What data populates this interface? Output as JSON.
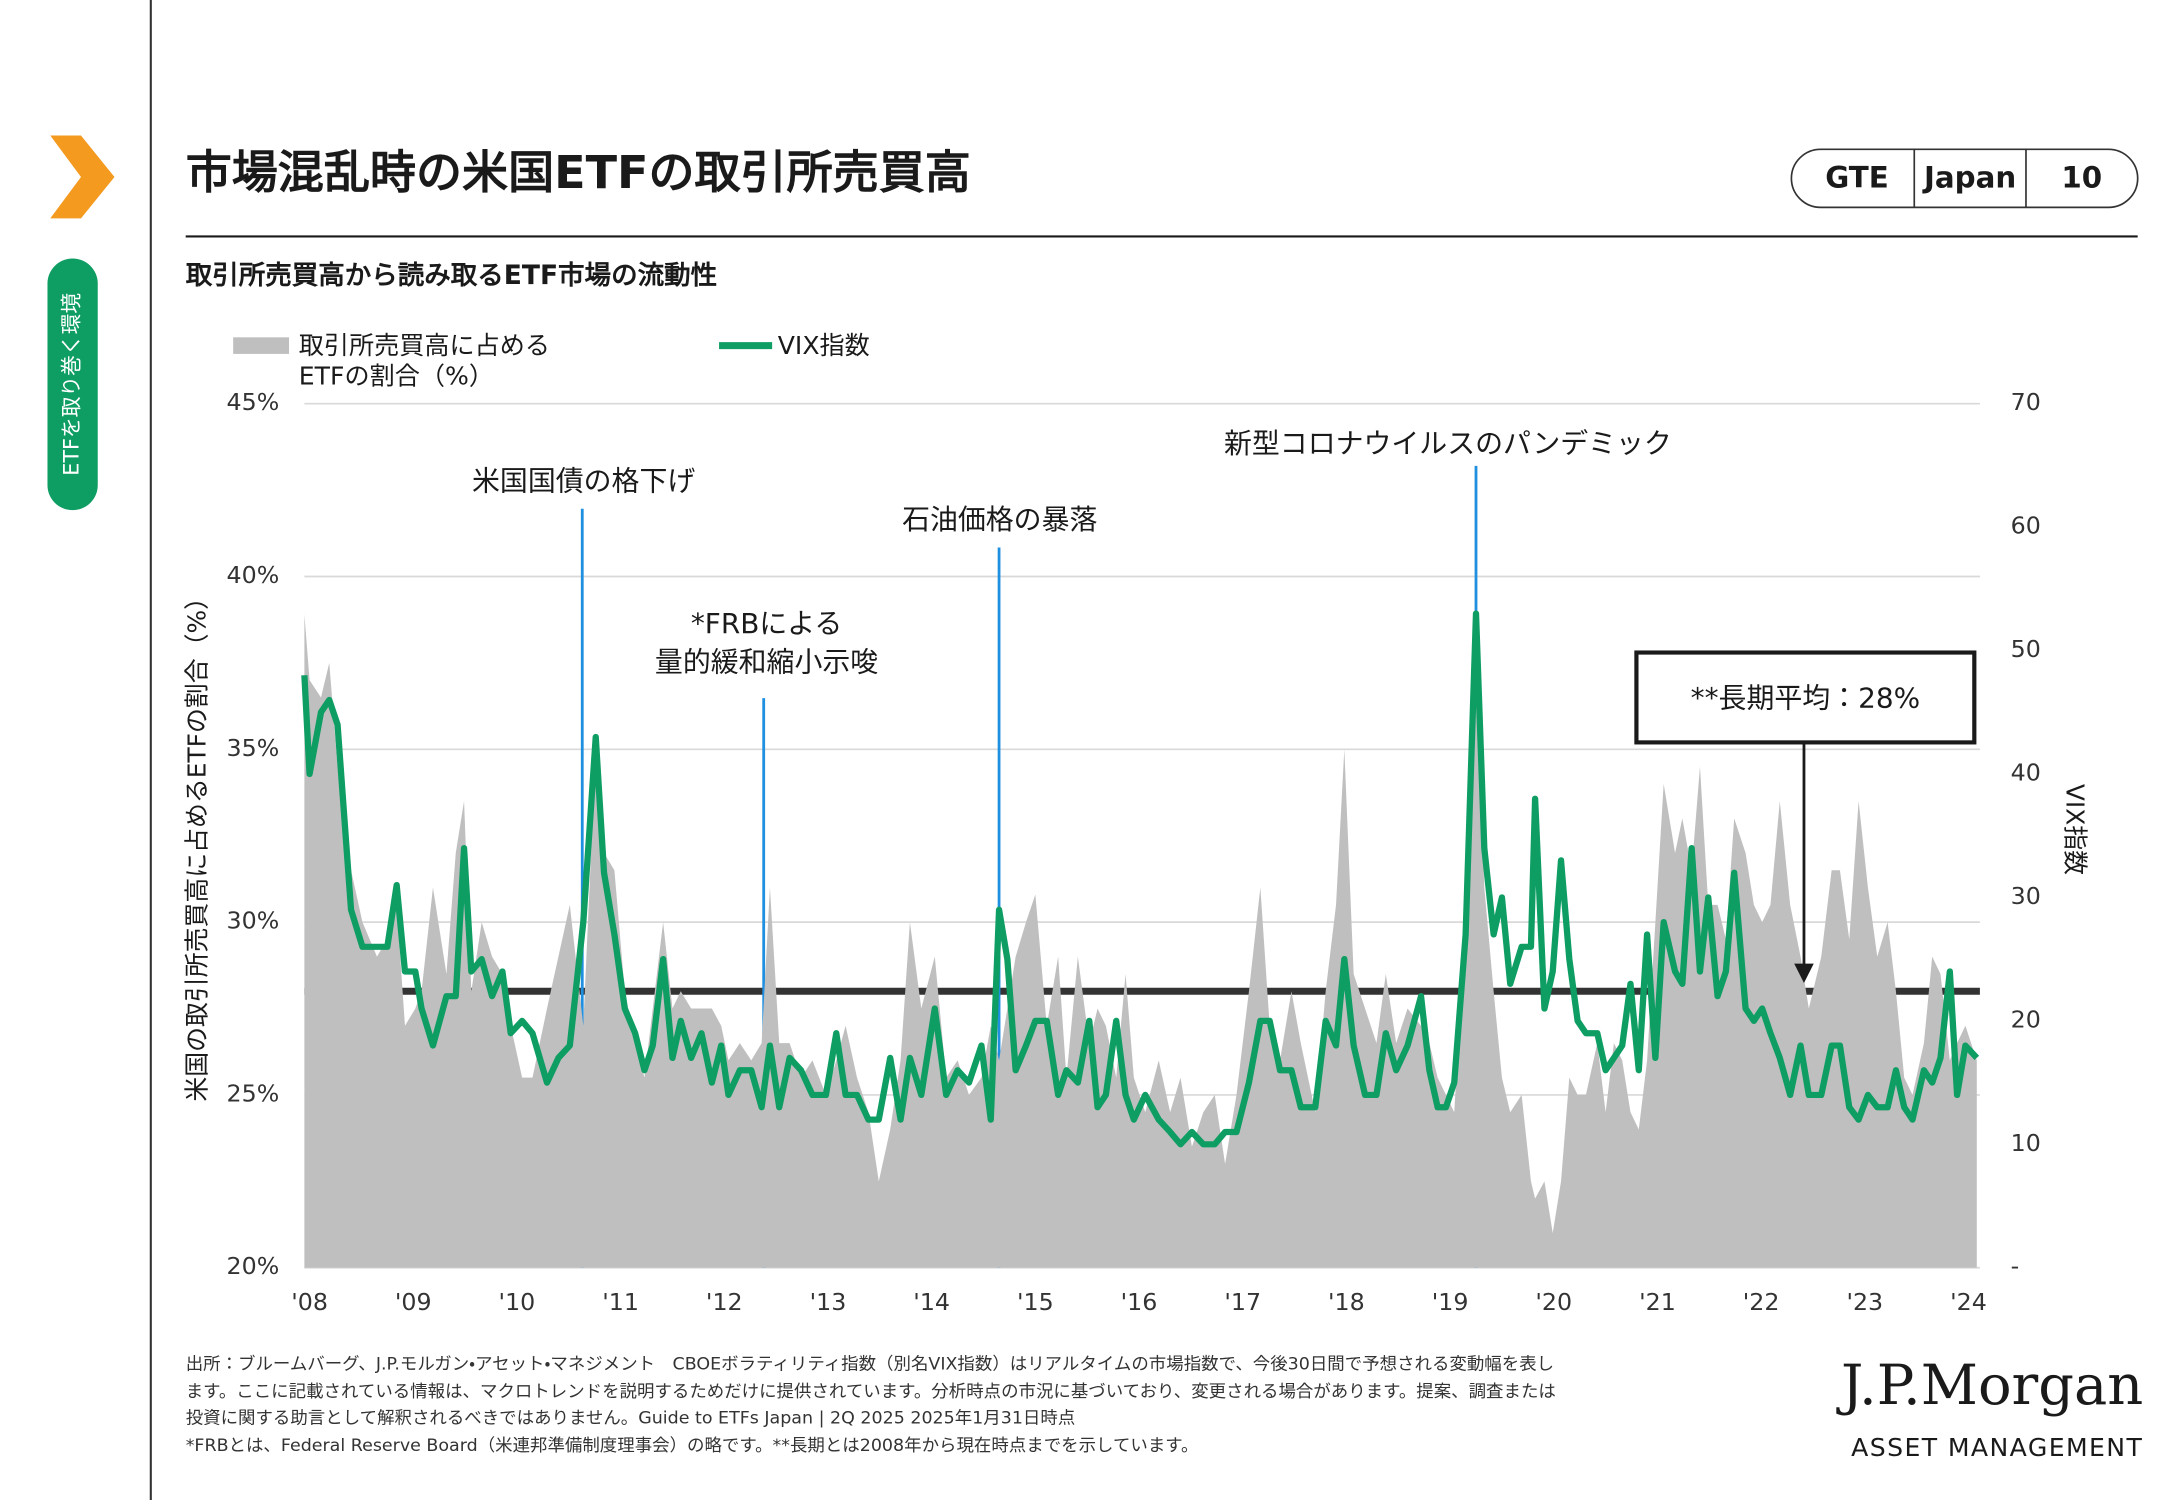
{
  "header": {
    "section": "ETFを取り巻く環境",
    "badge": [
      "GTE",
      "Japan",
      "10"
    ]
  },
  "chart_data": {
    "type": "combo",
    "title": "市場混乱時の米国ETFの取引所売買高",
    "subtitle": "取引所売買高から読み取るETF市場の流動性",
    "ylabel": "米国の取引所売買高に占めるETFの割合（%）",
    "y2label": "VIX指数",
    "xlim": [
      2007.95,
      2024.11
    ],
    "xticks": [
      {
        "value": 2008,
        "label": "'08"
      },
      {
        "value": 2009,
        "label": "'09"
      },
      {
        "value": 2010,
        "label": "'10"
      },
      {
        "value": 2011,
        "label": "'11"
      },
      {
        "value": 2012,
        "label": "'12"
      },
      {
        "value": 2013,
        "label": "'13"
      },
      {
        "value": 2014,
        "label": "'14"
      },
      {
        "value": 2015,
        "label": "'15"
      },
      {
        "value": 2016,
        "label": "'16"
      },
      {
        "value": 2017,
        "label": "'17"
      },
      {
        "value": 2018,
        "label": "'18"
      },
      {
        "value": 2019,
        "label": "'19"
      },
      {
        "value": 2020,
        "label": "'20"
      },
      {
        "value": 2021,
        "label": "'21"
      },
      {
        "value": 2022,
        "label": "'22"
      },
      {
        "value": 2023,
        "label": "'23"
      },
      {
        "value": 2024,
        "label": "'24"
      }
    ],
    "ylim": [
      20,
      45
    ],
    "yticks": [
      {
        "value": 20,
        "label": "20%"
      },
      {
        "value": 25,
        "label": "25%"
      },
      {
        "value": 30,
        "label": "30%"
      },
      {
        "value": 35,
        "label": "35%"
      },
      {
        "value": 40,
        "label": "40%"
      },
      {
        "value": 45,
        "label": "45%"
      }
    ],
    "y2lim": [
      0,
      70
    ],
    "y2ticks": [
      {
        "value": 0,
        "label": "-"
      },
      10,
      20,
      30,
      40,
      50,
      60,
      70
    ],
    "grid": true,
    "x": [
      2007.95,
      2008.0,
      2008.11,
      2008.19,
      2008.27,
      2008.4,
      2008.51,
      2008.65,
      2008.75,
      2008.84,
      2008.92,
      2009.02,
      2009.08,
      2009.19,
      2009.32,
      2009.41,
      2009.49,
      2009.56,
      2009.66,
      2009.76,
      2009.86,
      2009.94,
      2010.05,
      2010.15,
      2010.29,
      2010.4,
      2010.51,
      2010.64,
      2010.76,
      2010.84,
      2010.94,
      2011.04,
      2011.14,
      2011.23,
      2011.31,
      2011.41,
      2011.5,
      2011.58,
      2011.68,
      2011.78,
      2011.88,
      2011.97,
      2012.04,
      2012.15,
      2012.26,
      2012.36,
      2012.44,
      2012.53,
      2012.63,
      2012.74,
      2012.85,
      2012.98,
      2013.08,
      2013.17,
      2013.28,
      2013.39,
      2013.49,
      2013.6,
      2013.7,
      2013.79,
      2013.9,
      2014.03,
      2014.14,
      2014.25,
      2014.36,
      2014.48,
      2014.57,
      2014.65,
      2014.73,
      2014.81,
      2014.91,
      2015.0,
      2015.11,
      2015.22,
      2015.3,
      2015.41,
      2015.52,
      2015.6,
      2015.68,
      2015.78,
      2015.87,
      2015.95,
      2016.06,
      2016.19,
      2016.3,
      2016.4,
      2016.51,
      2016.62,
      2016.73,
      2016.83,
      2016.94,
      2017.06,
      2017.17,
      2017.26,
      2017.36,
      2017.47,
      2017.56,
      2017.7,
      2017.8,
      2017.9,
      2017.98,
      2018.07,
      2018.18,
      2018.29,
      2018.38,
      2018.48,
      2018.59,
      2018.72,
      2018.8,
      2018.88,
      2018.96,
      2019.04,
      2019.15,
      2019.25,
      2019.33,
      2019.42,
      2019.5,
      2019.58,
      2019.69,
      2019.78,
      2019.82,
      2019.91,
      2019.99,
      2020.07,
      2020.15,
      2020.23,
      2020.31,
      2020.42,
      2020.5,
      2020.58,
      2020.66,
      2020.74,
      2020.82,
      2020.9,
      2020.98,
      2021.06,
      2021.17,
      2021.24,
      2021.33,
      2021.41,
      2021.49,
      2021.58,
      2021.66,
      2021.74,
      2021.85,
      2021.93,
      2022.01,
      2022.09,
      2022.18,
      2022.28,
      2022.38,
      2022.46,
      2022.58,
      2022.68,
      2022.76,
      2022.85,
      2022.94,
      2023.03,
      2023.12,
      2023.22,
      2023.3,
      2023.38,
      2023.46,
      2023.57,
      2023.65,
      2023.73,
      2023.82,
      2023.89,
      2023.97,
      2024.08
    ],
    "series": [
      {
        "name": [
          "取引所売買高に占める",
          "ETFの割合（%）"
        ],
        "type": "area",
        "axis": "y",
        "color": "#bfbfbf",
        "values": [
          38.9,
          37,
          36.5,
          37.5,
          34.5,
          31.5,
          30,
          29,
          29.5,
          30.5,
          27,
          27.5,
          28,
          31,
          28.5,
          32,
          33.5,
          28,
          30,
          29,
          28.5,
          27,
          25.5,
          25.5,
          27.5,
          29,
          30.5,
          27,
          35,
          32,
          31.5,
          28,
          26.5,
          25.5,
          27.5,
          30,
          27.5,
          28,
          27.5,
          27.5,
          27.5,
          27,
          26,
          26.5,
          26,
          26.5,
          31,
          26.5,
          26.5,
          25.5,
          26,
          25,
          26,
          27,
          25.5,
          24.5,
          22.5,
          24,
          26,
          30,
          27.5,
          29,
          25.5,
          26,
          25,
          25.5,
          27,
          26,
          27.5,
          29,
          30,
          30.8,
          27,
          29,
          25.5,
          29,
          26.5,
          27.5,
          27,
          25.5,
          28.5,
          25.5,
          24.5,
          26,
          24.5,
          25.5,
          23.5,
          24.5,
          25,
          23,
          25,
          28,
          31,
          27,
          26,
          28,
          26.5,
          24.5,
          28,
          30.5,
          35,
          28.5,
          27.5,
          26.5,
          28.5,
          26.5,
          27.5,
          27,
          26.5,
          25.5,
          25,
          24.5,
          30,
          38.5,
          31,
          28,
          25.5,
          24.5,
          25,
          22.5,
          22,
          22.5,
          21,
          22.5,
          25.5,
          25,
          25,
          26.5,
          24.5,
          26.5,
          26,
          24.5,
          24,
          26,
          30,
          34,
          32,
          33,
          31.5,
          34.5,
          30.5,
          30.5,
          29.5,
          33,
          32,
          30.5,
          30,
          30.5,
          33.5,
          30.5,
          29,
          27.5,
          29,
          31.5,
          31.5,
          29.5,
          33.5,
          31,
          29,
          30,
          28,
          25.5,
          25,
          26.5,
          29,
          28.5,
          26,
          26.5,
          27,
          26
        ]
      },
      {
        "name": "VIX指数",
        "type": "line",
        "axis": "y2",
        "color": "#0e9d63",
        "values": [
          48,
          40,
          45,
          46,
          44,
          29,
          26,
          26,
          26,
          31,
          24,
          24,
          21,
          18,
          22,
          22,
          34,
          24,
          25,
          22,
          24,
          19,
          20,
          19,
          15,
          17,
          18,
          28,
          43,
          32,
          27,
          21,
          19,
          16,
          18,
          25,
          17,
          20,
          17,
          19,
          15,
          18,
          14,
          16,
          16,
          13,
          18,
          13,
          17,
          16,
          14,
          14,
          19,
          14,
          14,
          12,
          12,
          17,
          12,
          17,
          14,
          21,
          14,
          16,
          15,
          18,
          12,
          29,
          25,
          16,
          18,
          20,
          20,
          14,
          16,
          15,
          20,
          13,
          14,
          20,
          14,
          12,
          14,
          12,
          11,
          10,
          11,
          10,
          10,
          11,
          11,
          15,
          20,
          20,
          16,
          16,
          13,
          13,
          20,
          18,
          25,
          18,
          14,
          14,
          19,
          16,
          18,
          22,
          16,
          13,
          13,
          15,
          27,
          53,
          34,
          27,
          30,
          23,
          26,
          26,
          38,
          21,
          24,
          33,
          25,
          20,
          19,
          19,
          16,
          17,
          18,
          23,
          16,
          27,
          17,
          28,
          24,
          23,
          34,
          24,
          30,
          22,
          24,
          32,
          21,
          20,
          21,
          19,
          17,
          14,
          18,
          14,
          14,
          18,
          18,
          13,
          12,
          14,
          13,
          13,
          16,
          13,
          12,
          16,
          15,
          17,
          24,
          14,
          18,
          17
        ]
      }
    ],
    "average": {
      "value": 28,
      "label": "**長期平均：28%"
    },
    "annotations": [
      {
        "x": 2010.63,
        "lines": [
          "米国国債の格下げ"
        ]
      },
      {
        "x": 2012.38,
        "lines": [
          "*FRBによる",
          "量的緩和縮小示唆"
        ]
      },
      {
        "x": 2014.65,
        "lines": [
          "石油価格の暴落"
        ]
      },
      {
        "x": 2019.25,
        "lines": [
          "新型コロナウイルスのパンデミック"
        ]
      }
    ]
  },
  "footer": {
    "notes": [
      "出所：ブルームバーグ、J.P.モルガン・アセット・マネジメント　CBOEボラティリティ指数（別名VIX指数）はリアルタイムの市場指数で、今後30日間で予想される変動幅を表し",
      "ます。ここに記載されている情報は、マクロトレンドを説明するためだけに提供されています。分析時点の市況に基づいており、変更される場合があります。提案、調査または",
      "投資に関する助言として解釈されるべきではありません。Guide to ETFs Japan | 2Q 2025 2025年1月31日時点",
      "*FRBとは、Federal Reserve Board（米連邦準備制度理事会）の略です。**長期とは2008年から現在時点までを示しています。"
    ],
    "logo": "J.P.Morgan",
    "logo_sub": "ASSET MANAGEMENT"
  }
}
